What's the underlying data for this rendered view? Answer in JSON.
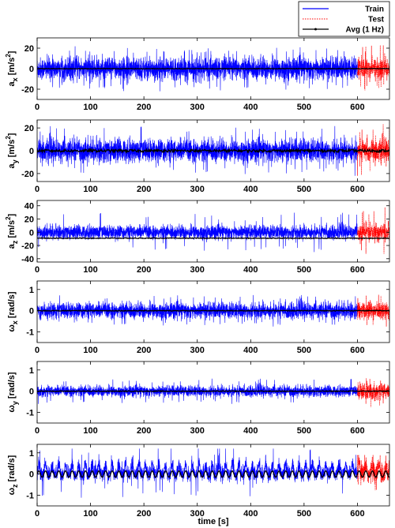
{
  "chart_data": {
    "type": "line",
    "xlabel": "time [s]",
    "xlim": [
      0,
      660
    ],
    "xticks": [
      0,
      100,
      200,
      300,
      400,
      500,
      600
    ],
    "grid": false,
    "legend": {
      "placement": "top-right",
      "entries": [
        {
          "label": "Train",
          "color": "#0000ff",
          "style": "solid"
        },
        {
          "label": "Test",
          "color": "#ff0000",
          "style": "dotted"
        },
        {
          "label": "Avg (1 Hz)",
          "color": "#000000",
          "style": "solid"
        }
      ]
    },
    "train_range": [
      0,
      600
    ],
    "test_range": [
      600,
      660
    ],
    "panels": [
      {
        "id": "ax",
        "ylabel": {
          "main": "a",
          "sub": "x",
          "unit_pre": "[m/s",
          "unit_sup": "2",
          "unit_post": "]"
        },
        "ylim": [
          -30,
          30
        ],
        "yticks": [
          -20,
          0,
          20
        ],
        "train_amplitude": 13,
        "train_peak": 22,
        "test_amplitude": 12,
        "test_peak": 24,
        "avg_level": 0,
        "avg_ripple": 0.3
      },
      {
        "id": "ay",
        "ylabel": {
          "main": "a",
          "sub": "y",
          "unit_pre": "[m/s",
          "unit_sup": "2",
          "unit_post": "]"
        },
        "ylim": [
          -27,
          27
        ],
        "yticks": [
          -20,
          0,
          20
        ],
        "train_amplitude": 12,
        "train_peak": 22,
        "test_amplitude": 11,
        "test_peak": 24,
        "avg_level": 0,
        "avg_ripple": 1.2
      },
      {
        "id": "az",
        "ylabel": {
          "main": "a",
          "sub": "z",
          "unit_pre": "[m/s",
          "unit_sup": "2",
          "unit_post": "]"
        },
        "ylim": [
          -45,
          48
        ],
        "yticks": [
          -40,
          -20,
          0,
          20,
          40
        ],
        "train_amplitude": 12,
        "train_peak": 30,
        "test_amplitude": 14,
        "test_peak": 38,
        "avg_level": -9,
        "avg_ripple": 0.5
      },
      {
        "id": "wx",
        "ylabel": {
          "main": "ω",
          "sub": "x",
          "unit_pre": "[rad/s]",
          "unit_sup": "",
          "unit_post": ""
        },
        "ylim": [
          -1.5,
          1.4
        ],
        "yticks": [
          -1,
          0,
          1
        ],
        "train_amplitude": 0.45,
        "train_peak": 0.75,
        "test_amplitude": 0.45,
        "test_peak": 0.8,
        "avg_level": 0,
        "avg_ripple": 0.02
      },
      {
        "id": "wy",
        "ylabel": {
          "main": "ω",
          "sub": "y",
          "unit_pre": "[rad/s]",
          "unit_sup": "",
          "unit_post": ""
        },
        "ylim": [
          -1.5,
          1.4
        ],
        "yticks": [
          -1,
          0,
          1
        ],
        "train_amplitude": 0.3,
        "train_peak": 0.6,
        "test_amplitude": 0.45,
        "test_peak": 0.75,
        "avg_level": 0,
        "avg_ripple": 0.02
      },
      {
        "id": "wz",
        "ylabel": {
          "main": "ω",
          "sub": "z",
          "unit_pre": "[rad/s]",
          "unit_sup": "",
          "unit_post": ""
        },
        "ylim": [
          -1.5,
          1.4
        ],
        "yticks": [
          -1,
          0,
          1
        ],
        "train_amplitude": 0.4,
        "train_peak": 1.2,
        "test_amplitude": 0.55,
        "test_peak": 0.9,
        "avg_level": 0,
        "avg_ripple": 0.15
      }
    ]
  }
}
